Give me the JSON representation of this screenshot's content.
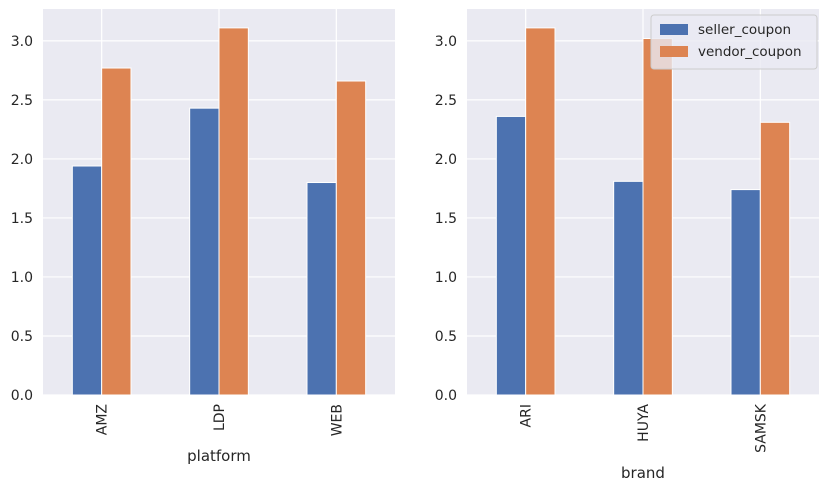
{
  "chart_data": [
    {
      "type": "bar",
      "categories": [
        "AMZ",
        "LDP",
        "WEB"
      ],
      "series": [
        {
          "name": "seller_coupon",
          "values": [
            1.94,
            2.43,
            1.8
          ],
          "color": "#4c72b0"
        },
        {
          "name": "vendor_coupon",
          "values": [
            2.77,
            3.11,
            2.66
          ],
          "color": "#dd8452"
        }
      ],
      "xlabel": "platform",
      "ylabel": "",
      "ylim": [
        0,
        3.27
      ],
      "yticks": [
        "0.0",
        "0.5",
        "1.0",
        "1.5",
        "2.0",
        "2.5",
        "3.0"
      ],
      "grid": true,
      "legend": "none"
    },
    {
      "type": "bar",
      "categories": [
        "ARI",
        "HUYA",
        "SAMSK"
      ],
      "series": [
        {
          "name": "seller_coupon",
          "values": [
            2.36,
            1.81,
            1.74
          ],
          "color": "#4c72b0"
        },
        {
          "name": "vendor_coupon",
          "values": [
            3.11,
            3.02,
            2.31
          ],
          "color": "#dd8452"
        }
      ],
      "xlabel": "brand",
      "ylabel": "",
      "ylim": [
        0,
        3.27
      ],
      "yticks": [
        "0.0",
        "0.5",
        "1.0",
        "1.5",
        "2.0",
        "2.5",
        "3.0"
      ],
      "grid": true,
      "legend": "top-right"
    }
  ],
  "style": {
    "plot_background": "#eaeaf2",
    "grid_color": "#ffffff"
  }
}
